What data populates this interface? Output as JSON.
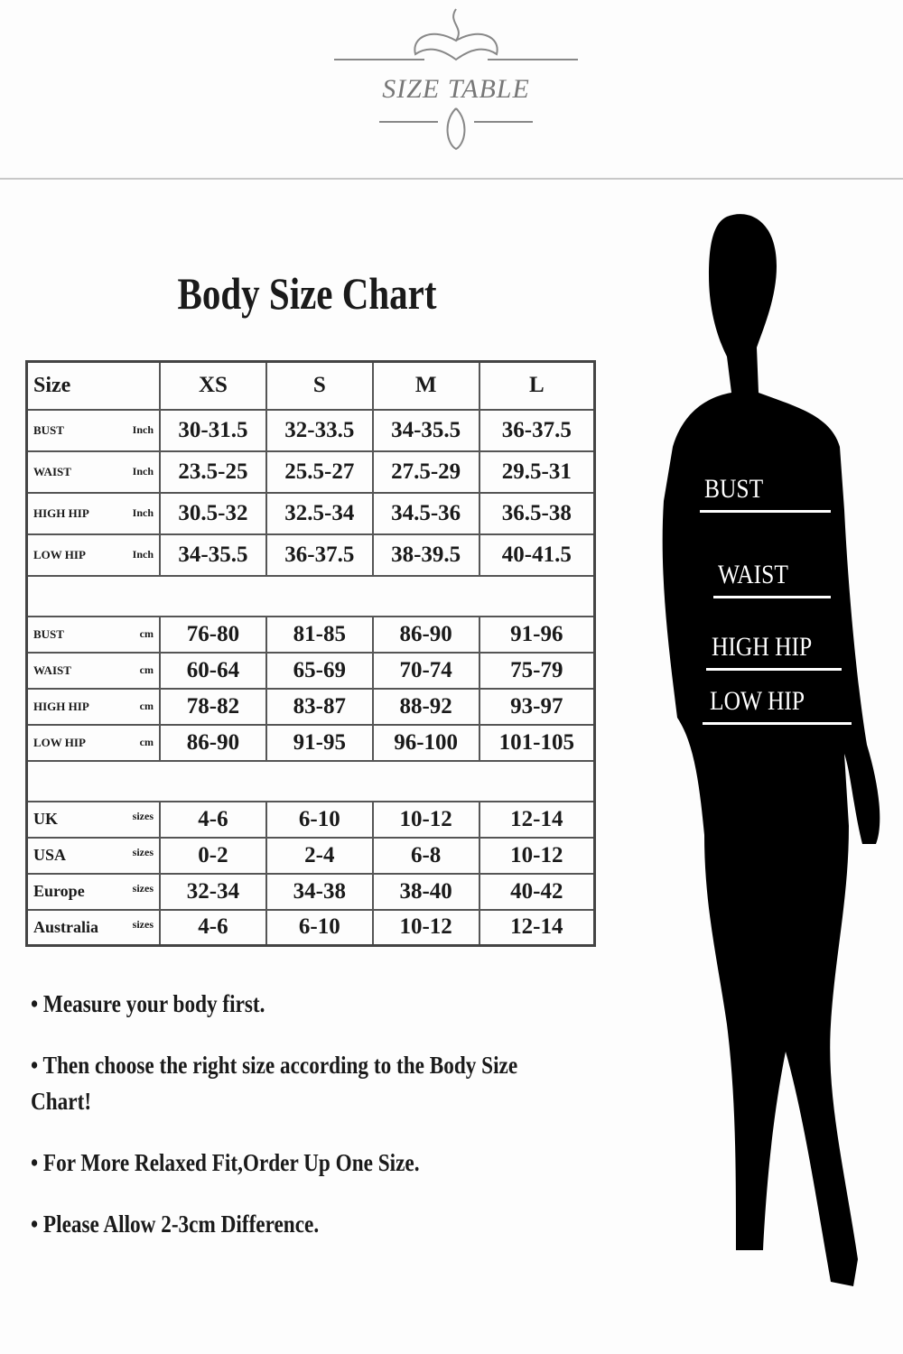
{
  "header": {
    "logo_text": "SIZE TABLE"
  },
  "title": "Body Size Chart",
  "table": {
    "columns": [
      "Size",
      "XS",
      "S",
      "M",
      "L"
    ],
    "inch_rows": [
      {
        "label": "BUST",
        "unit": "Inch",
        "values": [
          "30-31.5",
          "32-33.5",
          "34-35.5",
          "36-37.5"
        ]
      },
      {
        "label": "WAIST",
        "unit": "Inch",
        "values": [
          "23.5-25",
          "25.5-27",
          "27.5-29",
          "29.5-31"
        ]
      },
      {
        "label": "HIGH HIP",
        "unit": "Inch",
        "values": [
          "30.5-32",
          "32.5-34",
          "34.5-36",
          "36.5-38"
        ]
      },
      {
        "label": "LOW HIP",
        "unit": "Inch",
        "values": [
          "34-35.5",
          "36-37.5",
          "38-39.5",
          "40-41.5"
        ]
      }
    ],
    "cm_rows": [
      {
        "label": "BUST",
        "unit": "cm",
        "values": [
          "76-80",
          "81-85",
          "86-90",
          "91-96"
        ]
      },
      {
        "label": "WAIST",
        "unit": "cm",
        "values": [
          "60-64",
          "65-69",
          "70-74",
          "75-79"
        ]
      },
      {
        "label": "HIGH HIP",
        "unit": "cm",
        "values": [
          "78-82",
          "83-87",
          "88-92",
          "93-97"
        ]
      },
      {
        "label": "LOW HIP",
        "unit": "cm",
        "values": [
          "86-90",
          "91-95",
          "96-100",
          "101-105"
        ]
      }
    ],
    "size_rows": [
      {
        "label": "UK",
        "unit": "sizes",
        "values": [
          "4-6",
          "6-10",
          "10-12",
          "12-14"
        ]
      },
      {
        "label": "USA",
        "unit": "sizes",
        "values": [
          "0-2",
          "2-4",
          "6-8",
          "10-12"
        ]
      },
      {
        "label": "Europe",
        "unit": "sizes",
        "values": [
          "32-34",
          "34-38",
          "38-40",
          "40-42"
        ]
      },
      {
        "label": "Australia",
        "unit": "sizes",
        "values": [
          "4-6",
          "6-10",
          "10-12",
          "12-14"
        ]
      }
    ]
  },
  "notes": [
    "Measure your body first.",
    "Then choose the right size according to the Body Size Chart!",
    "For More Relaxed Fit,Order Up One Size.",
    "Please Allow 2-3cm Difference."
  ],
  "figure": {
    "labels": [
      "BUST",
      "WAIST",
      "HIGH HIP",
      "LOW HIP"
    ]
  }
}
